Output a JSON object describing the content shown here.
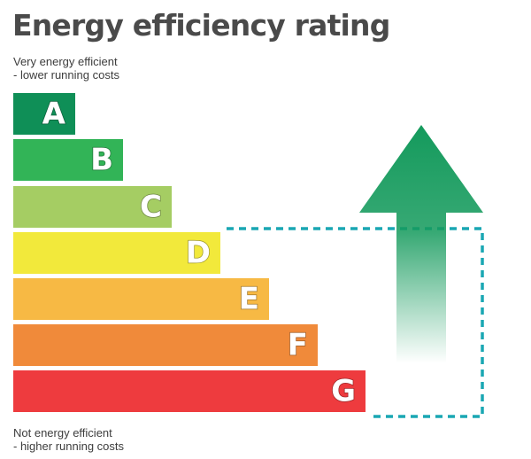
{
  "title": "Energy efficiency rating",
  "top_note": {
    "line1": "Very energy efficient",
    "line2": "- lower running costs"
  },
  "bottom_note": {
    "line1": "Not energy efficient",
    "line2": "- higher running costs"
  },
  "bands": [
    {
      "letter": "A",
      "color": "#0f8f57"
    },
    {
      "letter": "B",
      "color": "#32b457"
    },
    {
      "letter": "C",
      "color": "#a5cd63"
    },
    {
      "letter": "D",
      "color": "#f2e93b"
    },
    {
      "letter": "E",
      "color": "#f7b944"
    },
    {
      "letter": "F",
      "color": "#f08a3a"
    },
    {
      "letter": "G",
      "color": "#ee3b3e"
    }
  ],
  "arrow": {
    "icon": "up-arrow-icon",
    "color": "#149a5c"
  },
  "dashed_box": {
    "color": "#1aa7b3"
  }
}
